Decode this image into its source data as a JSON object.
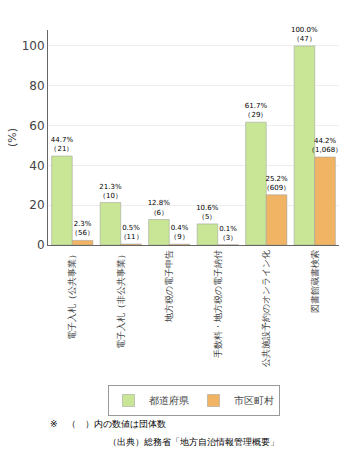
{
  "chart_data": {
    "type": "bar",
    "ylabel": "(%)",
    "categories": [
      "電子入札（公共事業）",
      "電子入札（非公共事業）",
      "地方税の電子申告",
      "手数料・地方税の電子納付",
      "公共施設予約のオンライン化",
      "図書館蔵書検索"
    ],
    "series": [
      {
        "name": "都道府県",
        "color": "#c8e696",
        "values": [
          44.7,
          21.3,
          12.8,
          10.6,
          61.7,
          100.0
        ],
        "value_labels": [
          "44.7%\n（21）",
          "21.3%\n（10）",
          "12.8%\n（6）",
          "10.6%\n（5）",
          "61.7%\n（29）",
          "100.0%\n（47）"
        ]
      },
      {
        "name": "市区町村",
        "color": "#f0b464",
        "values": [
          2.3,
          0.5,
          0.4,
          0.1,
          25.2,
          44.2
        ],
        "value_labels": [
          "2.3%\n（56）",
          "0.5%\n（11）",
          "0.4%\n（9）",
          "0.1%\n（3）",
          "25.2%\n（609）",
          "44.2%\n（1,068）"
        ]
      }
    ],
    "ylim": [
      0,
      108
    ],
    "yticks": [
      0,
      20,
      40,
      60,
      80,
      100
    ],
    "grid": true,
    "legend": "bottom",
    "data_labels": true,
    "annotations": [
      "※　（　）内の数値は団体数",
      "（出典）総務省「地方自治情報管理概要」"
    ]
  }
}
